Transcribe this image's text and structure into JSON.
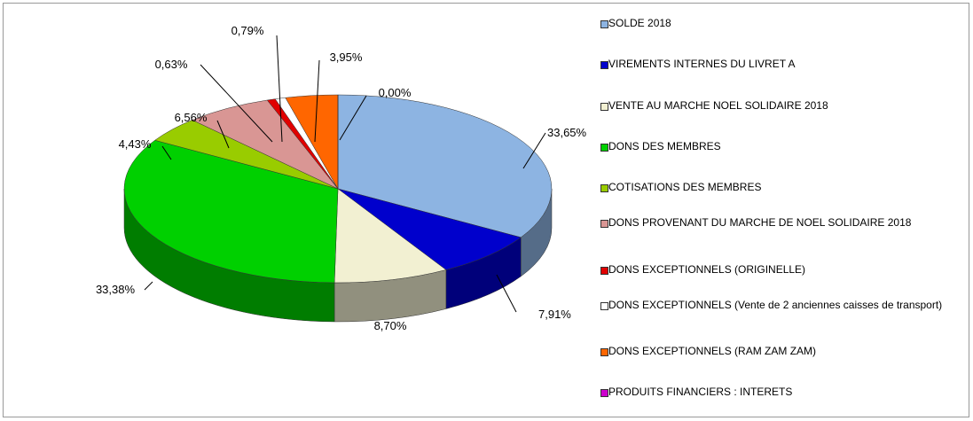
{
  "chart_data": {
    "type": "pie",
    "categories": [
      "SOLDE 2018",
      "VIREMENTS INTERNES DU LIVRET A",
      "VENTE AU MARCHE NOEL SOLIDAIRE 2018",
      "DONS DES MEMBRES",
      "COTISATIONS DES MEMBRES",
      "DONS PROVENANT DU MARCHE DE NOEL SOLIDAIRE 2018",
      "DONS EXCEPTIONNELS (ORIGINELLE)",
      "DONS EXCEPTIONNELS (Vente de 2 anciennes caisses de transport)",
      "DONS EXCEPTIONNELS (RAM ZAM ZAM)",
      "PRODUITS FINANCIERS : INTERETS"
    ],
    "values": [
      33.65,
      7.91,
      8.7,
      33.38,
      4.43,
      6.56,
      0.63,
      0.79,
      3.95,
      0.0
    ],
    "value_labels": [
      "33,65%",
      "7,91%",
      "8,70%",
      "33,38%",
      "4,43%",
      "6,56%",
      "0,63%",
      "0,79%",
      "3,95%",
      "0,00%"
    ],
    "colors": [
      "#8db4e2",
      "#0000cc",
      "#f2f0d2",
      "#00d000",
      "#99cc00",
      "#d99694",
      "#e00000",
      "#ffffff",
      "#ff6600",
      "#cc00cc"
    ],
    "legend": "right"
  }
}
